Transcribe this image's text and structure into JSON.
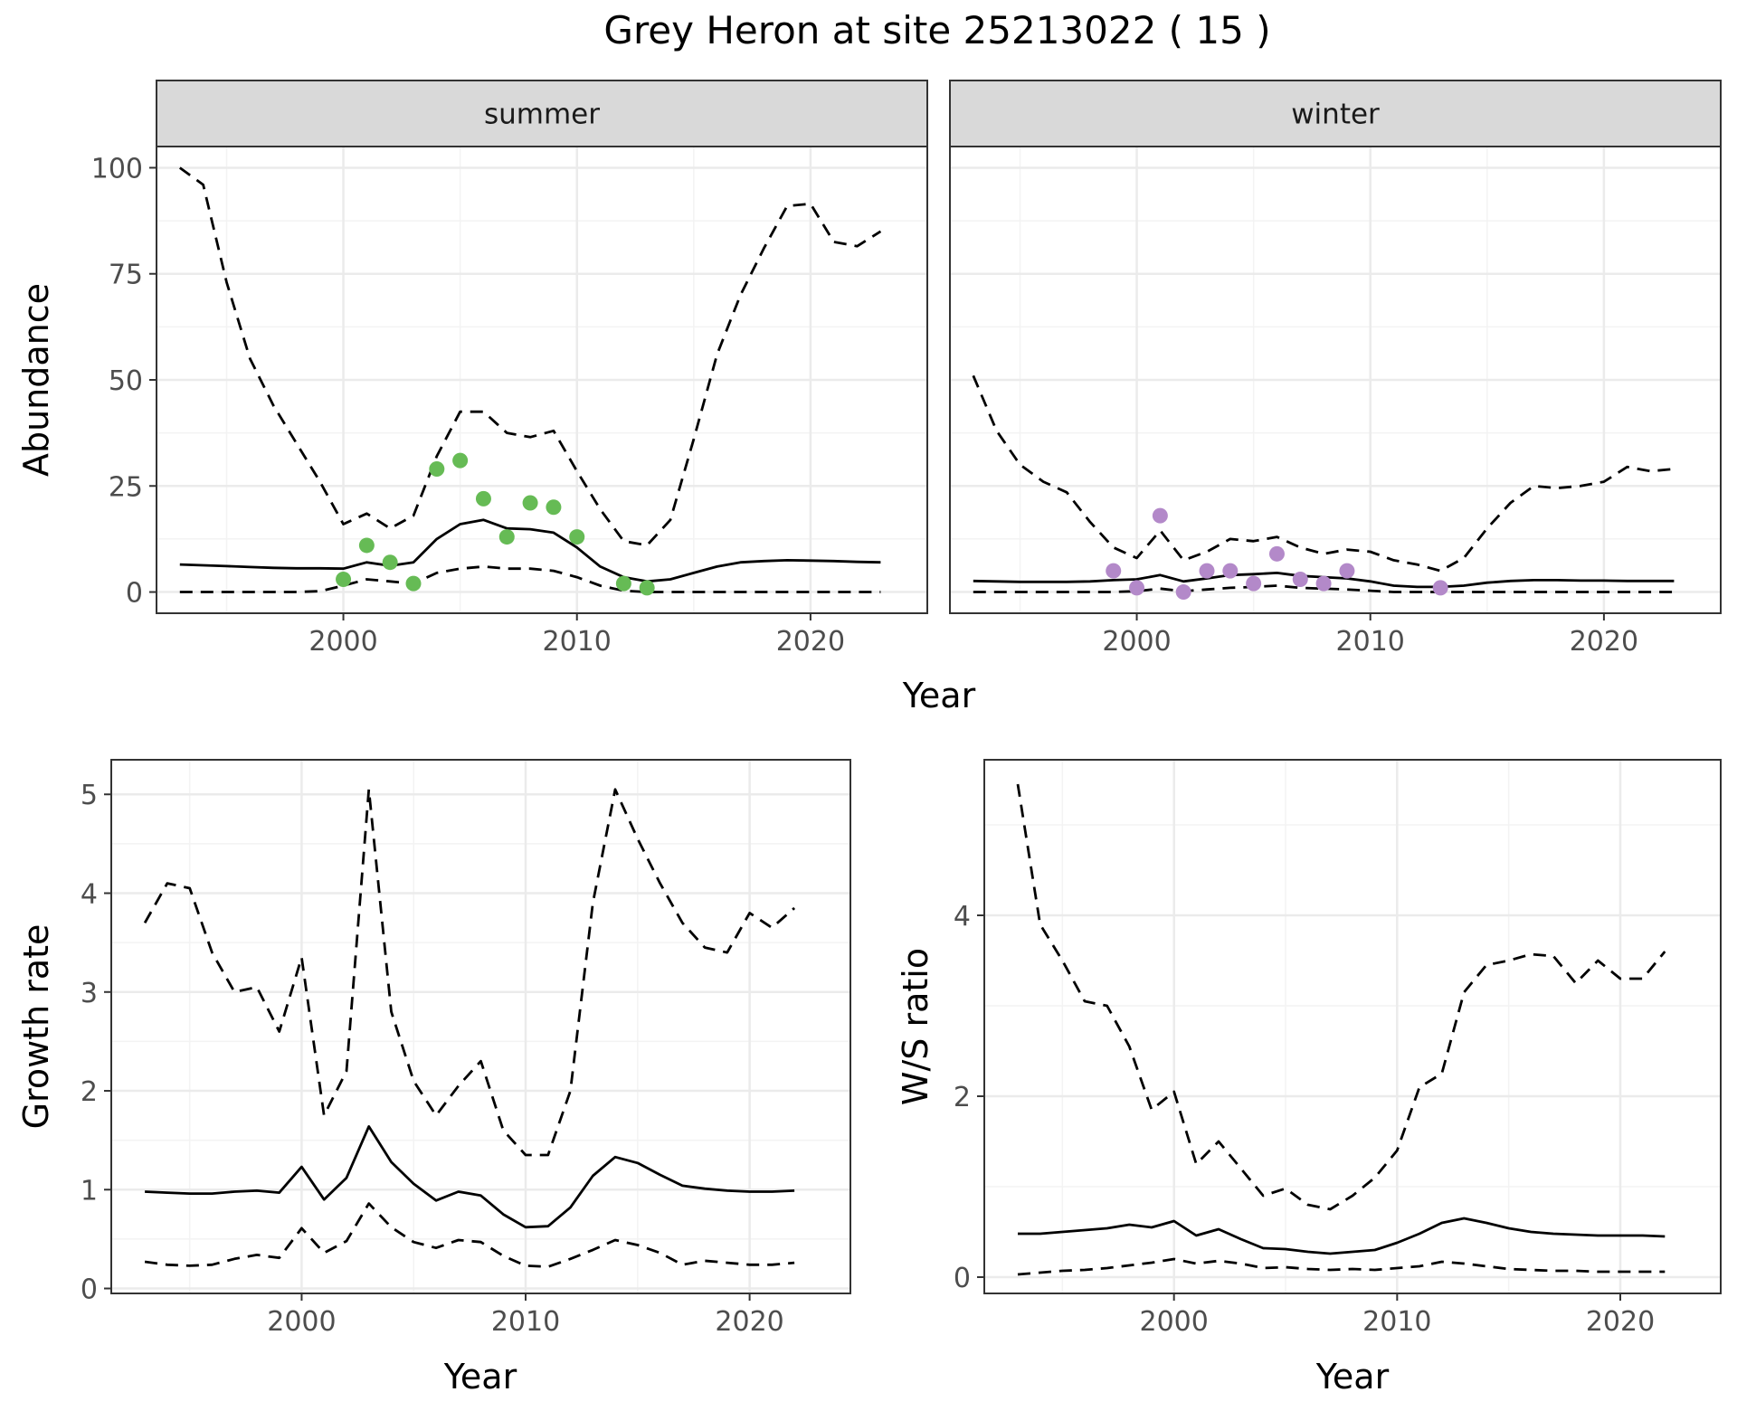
{
  "title": "Grey Heron at site 25213022 ( 15 )",
  "colors": {
    "summer_points": "#66bb55",
    "winter_points": "#b389c9",
    "line": "#000000",
    "grid_major": "#ebebeb",
    "grid_minor": "#f3f3f3",
    "strip_bg": "#d9d9d9",
    "panel_border": "#333333"
  },
  "chart_data": [
    {
      "type": "line",
      "panel": "summer",
      "strip_label": "summer",
      "xlabel": "Year",
      "ylabel": "Abundance",
      "xlim": [
        1992,
        2025
      ],
      "ylim": [
        -5,
        105
      ],
      "xticks": [
        2000,
        2010,
        2020
      ],
      "yticks": [
        0,
        25,
        50,
        75,
        100
      ],
      "point_color": "#66bb55",
      "x": [
        1993,
        1994,
        1995,
        1996,
        1997,
        1998,
        1999,
        2000,
        2001,
        2002,
        2003,
        2004,
        2005,
        2006,
        2007,
        2008,
        2009,
        2010,
        2011,
        2012,
        2013,
        2014,
        2015,
        2016,
        2017,
        2018,
        2019,
        2020,
        2021,
        2022,
        2023
      ],
      "series": [
        {
          "role": "estimate",
          "style": "solid",
          "values": [
            6.5,
            6.3,
            6.1,
            5.9,
            5.7,
            5.6,
            5.6,
            5.5,
            7.0,
            6.2,
            7.0,
            12.5,
            16.0,
            17.0,
            15.0,
            14.8,
            14.0,
            10.5,
            6.0,
            3.5,
            2.5,
            3.0,
            4.5,
            6.0,
            7.0,
            7.3,
            7.5,
            7.4,
            7.3,
            7.1,
            7.0
          ]
        },
        {
          "role": "upper",
          "style": "dashed",
          "values": [
            100,
            96,
            73,
            55,
            44,
            35,
            26,
            16,
            18.5,
            15,
            18,
            32,
            42.5,
            42.5,
            37.5,
            36.5,
            38,
            28.5,
            19.5,
            12,
            11,
            17,
            36,
            56,
            70,
            81,
            91,
            91.5,
            82.5,
            81.5,
            85
          ]
        },
        {
          "role": "lower",
          "style": "dashed",
          "values": [
            0,
            0,
            0,
            0,
            0,
            0,
            0.2,
            1.5,
            3,
            2.5,
            2,
            4.5,
            5.5,
            6,
            5.5,
            5.5,
            5,
            3.5,
            1.5,
            0.3,
            0,
            0,
            0,
            0,
            0,
            0,
            0,
            0,
            0,
            0,
            0
          ]
        }
      ],
      "points": {
        "x": [
          2000,
          2001,
          2002,
          2003,
          2004,
          2005,
          2006,
          2007,
          2008,
          2009,
          2010,
          2012,
          2013
        ],
        "y": [
          3,
          11,
          7,
          2,
          29,
          31,
          22,
          13,
          21,
          20,
          13,
          2,
          1
        ]
      }
    },
    {
      "type": "line",
      "panel": "winter",
      "strip_label": "winter",
      "xlim": [
        1992,
        2025
      ],
      "ylim": [
        -5,
        105
      ],
      "xticks": [
        2000,
        2010,
        2020
      ],
      "point_color": "#b389c9",
      "x": [
        1993,
        1994,
        1995,
        1996,
        1997,
        1998,
        1999,
        2000,
        2001,
        2002,
        2003,
        2004,
        2005,
        2006,
        2007,
        2008,
        2009,
        2010,
        2011,
        2012,
        2013,
        2014,
        2015,
        2016,
        2017,
        2018,
        2019,
        2020,
        2021,
        2022,
        2023
      ],
      "series": [
        {
          "role": "estimate",
          "style": "solid",
          "values": [
            2.6,
            2.5,
            2.4,
            2.4,
            2.4,
            2.5,
            2.8,
            3.0,
            4.0,
            2.5,
            3.2,
            4.0,
            4.2,
            4.5,
            3.8,
            3.5,
            3.2,
            2.5,
            1.5,
            1.2,
            1.2,
            1.5,
            2.2,
            2.6,
            2.8,
            2.8,
            2.7,
            2.7,
            2.6,
            2.6,
            2.6
          ]
        },
        {
          "role": "upper",
          "style": "dashed",
          "values": [
            51,
            38,
            30,
            26,
            23.5,
            16.5,
            10.5,
            8,
            14.5,
            7.5,
            9.5,
            12.5,
            12,
            13,
            10.5,
            9,
            10,
            9.5,
            7.5,
            6.5,
            5,
            8,
            15,
            21,
            25,
            24.5,
            25,
            26,
            29.5,
            28.5,
            29
          ]
        },
        {
          "role": "lower",
          "style": "dashed",
          "values": [
            0,
            0,
            0,
            0,
            0,
            0,
            0,
            0.2,
            0.8,
            0.2,
            0.6,
            1,
            1.2,
            1.5,
            1,
            0.8,
            0.6,
            0.3,
            0,
            0,
            0,
            0,
            0,
            0,
            0,
            0,
            0,
            0,
            0,
            0,
            0
          ]
        }
      ],
      "points": {
        "x": [
          1999,
          2000,
          2001,
          2002,
          2003,
          2004,
          2005,
          2006,
          2007,
          2008,
          2009,
          2013
        ],
        "y": [
          5,
          1,
          18,
          0,
          5,
          5,
          2,
          9,
          3,
          2,
          5,
          1
        ]
      }
    },
    {
      "type": "line",
      "panel": "growth",
      "xlabel": "Year",
      "ylabel": "Growth rate",
      "xlim": [
        1991.5,
        2024.5
      ],
      "ylim": [
        -0.05,
        5.35
      ],
      "xticks": [
        2000,
        2010,
        2020
      ],
      "yticks": [
        0,
        1,
        2,
        3,
        4,
        5
      ],
      "x": [
        1993,
        1994,
        1995,
        1996,
        1997,
        1998,
        1999,
        2000,
        2001,
        2002,
        2003,
        2004,
        2005,
        2006,
        2007,
        2008,
        2009,
        2010,
        2011,
        2012,
        2013,
        2014,
        2015,
        2016,
        2017,
        2018,
        2019,
        2020,
        2021,
        2022
      ],
      "series": [
        {
          "role": "estimate",
          "style": "solid",
          "values": [
            0.98,
            0.97,
            0.96,
            0.96,
            0.98,
            0.99,
            0.97,
            1.23,
            0.9,
            1.12,
            1.64,
            1.28,
            1.06,
            0.89,
            0.98,
            0.94,
            0.75,
            0.62,
            0.63,
            0.82,
            1.14,
            1.33,
            1.27,
            1.15,
            1.04,
            1.01,
            0.99,
            0.98,
            0.98,
            0.99
          ]
        },
        {
          "role": "upper",
          "style": "dashed",
          "values": [
            3.7,
            4.1,
            4.05,
            3.4,
            3.0,
            3.05,
            2.6,
            3.35,
            1.75,
            2.2,
            5.05,
            2.8,
            2.1,
            1.75,
            2.05,
            2.3,
            1.6,
            1.35,
            1.35,
            2.0,
            3.9,
            5.05,
            4.55,
            4.1,
            3.7,
            3.45,
            3.4,
            3.8,
            3.65,
            3.85
          ]
        },
        {
          "role": "lower",
          "style": "dashed",
          "values": [
            0.27,
            0.24,
            0.23,
            0.24,
            0.3,
            0.34,
            0.31,
            0.61,
            0.36,
            0.48,
            0.86,
            0.62,
            0.47,
            0.41,
            0.49,
            0.47,
            0.33,
            0.23,
            0.22,
            0.3,
            0.39,
            0.49,
            0.44,
            0.36,
            0.24,
            0.28,
            0.26,
            0.24,
            0.24,
            0.26
          ]
        }
      ]
    },
    {
      "type": "line",
      "panel": "ratio",
      "xlabel": "Year",
      "ylabel": "W/S ratio",
      "xlim": [
        1991.5,
        2024.5
      ],
      "ylim": [
        -0.18,
        5.72
      ],
      "xticks": [
        2000,
        2010,
        2020
      ],
      "yticks": [
        0,
        2,
        4
      ],
      "x": [
        1993,
        1994,
        1995,
        1996,
        1997,
        1998,
        1999,
        2000,
        2001,
        2002,
        2003,
        2004,
        2005,
        2006,
        2007,
        2008,
        2009,
        2010,
        2011,
        2012,
        2013,
        2014,
        2015,
        2016,
        2017,
        2018,
        2019,
        2020,
        2021,
        2022
      ],
      "series": [
        {
          "role": "estimate",
          "style": "solid",
          "values": [
            0.48,
            0.48,
            0.5,
            0.52,
            0.54,
            0.58,
            0.55,
            0.62,
            0.46,
            0.53,
            0.42,
            0.32,
            0.31,
            0.28,
            0.26,
            0.28,
            0.3,
            0.38,
            0.48,
            0.6,
            0.65,
            0.6,
            0.54,
            0.5,
            0.48,
            0.47,
            0.46,
            0.46,
            0.46,
            0.45
          ]
        },
        {
          "role": "upper",
          "style": "dashed",
          "values": [
            5.45,
            3.9,
            3.5,
            3.05,
            3.0,
            2.55,
            1.85,
            2.05,
            1.25,
            1.5,
            1.2,
            0.9,
            0.98,
            0.8,
            0.75,
            0.9,
            1.1,
            1.4,
            2.1,
            2.25,
            3.15,
            3.45,
            3.5,
            3.57,
            3.55,
            3.25,
            3.5,
            3.3,
            3.3,
            3.6
          ]
        },
        {
          "role": "lower",
          "style": "dashed",
          "values": [
            0.03,
            0.05,
            0.07,
            0.08,
            0.1,
            0.13,
            0.16,
            0.2,
            0.15,
            0.18,
            0.15,
            0.1,
            0.11,
            0.09,
            0.08,
            0.09,
            0.08,
            0.1,
            0.12,
            0.17,
            0.15,
            0.12,
            0.09,
            0.08,
            0.07,
            0.07,
            0.06,
            0.06,
            0.06,
            0.06
          ]
        }
      ]
    }
  ]
}
